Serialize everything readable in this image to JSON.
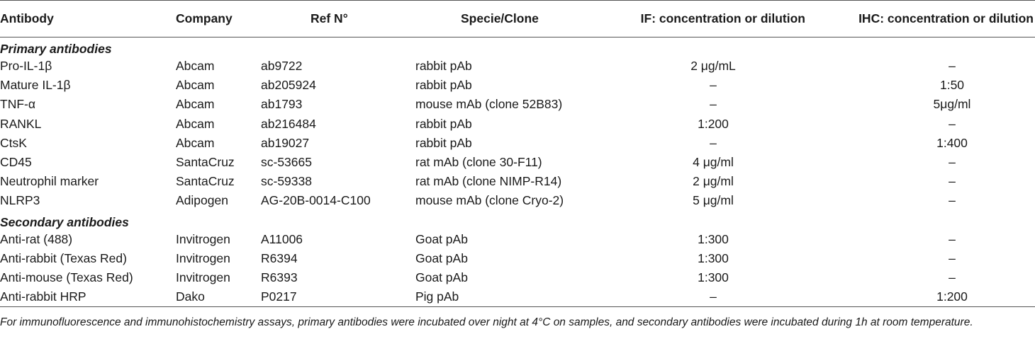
{
  "headers": [
    "Antibody",
    "Company",
    "Ref N°",
    "Specie/Clone",
    "IF: concentration or dilution",
    "IHC: concentration or dilution"
  ],
  "sections": [
    {
      "title": "Primary antibodies",
      "rows": [
        [
          "Pro-IL-1β",
          "Abcam",
          "ab9722",
          "rabbit pAb",
          "2 μg/mL",
          "–"
        ],
        [
          "Mature IL-1β",
          "Abcam",
          "ab205924",
          "rabbit pAb",
          "–",
          "1:50"
        ],
        [
          "TNF-α",
          "Abcam",
          "ab1793",
          "mouse mAb (clone 52B83)",
          "–",
          "5μg/ml"
        ],
        [
          "RANKL",
          "Abcam",
          "ab216484",
          "rabbit pAb",
          "1:200",
          "–"
        ],
        [
          "CtsK",
          "Abcam",
          "ab19027",
          "rabbit pAb",
          "–",
          "1:400"
        ],
        [
          "CD45",
          "SantaCruz",
          "sc-53665",
          "rat mAb (clone 30-F11)",
          "4 μg/ml",
          "–"
        ],
        [
          "Neutrophil marker",
          "SantaCruz",
          "sc-59338",
          "rat mAb (clone NIMP-R14)",
          "2 μg/ml",
          "–"
        ],
        [
          "NLRP3",
          "Adipogen",
          "AG-20B-0014-C100",
          "mouse mAb (clone Cryo-2)",
          "5 μg/ml",
          "–"
        ]
      ]
    },
    {
      "title": "Secondary antibodies",
      "rows": [
        [
          "Anti-rat (488)",
          "Invitrogen",
          "A11006",
          "Goat pAb",
          "1:300",
          "–"
        ],
        [
          "Anti-rabbit (Texas Red)",
          "Invitrogen",
          "R6394",
          "Goat pAb",
          "1:300",
          "–"
        ],
        [
          "Anti-mouse (Texas Red)",
          "Invitrogen",
          "R6393",
          "Goat pAb",
          "1:300",
          "–"
        ],
        [
          "Anti-rabbit HRP",
          "Dako",
          "P0217",
          "Pig pAb",
          "–",
          "1:200"
        ]
      ]
    }
  ],
  "footnote": "For immunofluorescence and immunohistochemistry assays, primary antibodies were incubated over night at 4°C on samples, and secondary antibodies were incubated during 1h at room temperature."
}
